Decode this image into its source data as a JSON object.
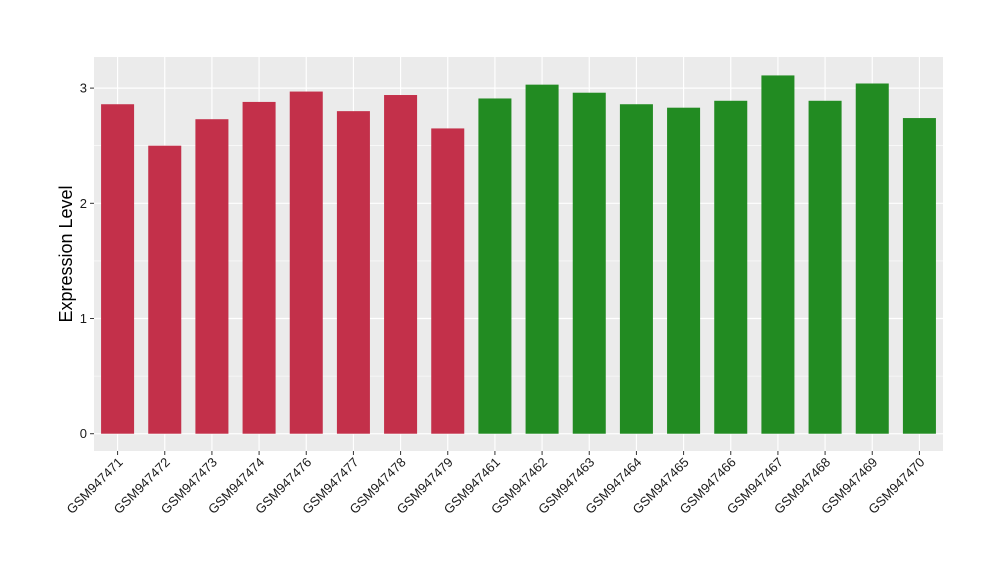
{
  "chart_data": {
    "type": "bar",
    "title": "",
    "xlabel": "",
    "ylabel": "Expression Level",
    "ylim": [
      -0.15,
      3.27
    ],
    "yticks": [
      0,
      1,
      2,
      3
    ],
    "grid": true,
    "legend": "none",
    "panel_color": "#ebebeb",
    "grid_color": "#ffffff",
    "categories": [
      "GSM947471",
      "GSM947472",
      "GSM947473",
      "GSM947474",
      "GSM947476",
      "GSM947477",
      "GSM947478",
      "GSM947479",
      "GSM947461",
      "GSM947462",
      "GSM947463",
      "GSM947464",
      "GSM947465",
      "GSM947466",
      "GSM947467",
      "GSM947468",
      "GSM947469",
      "GSM947470"
    ],
    "values": [
      2.86,
      2.5,
      2.73,
      2.88,
      2.97,
      2.8,
      2.94,
      2.65,
      2.91,
      3.03,
      2.96,
      2.86,
      2.83,
      2.89,
      3.11,
      2.89,
      3.04,
      2.74
    ],
    "colors": [
      "#c3304a",
      "#c3304a",
      "#c3304a",
      "#c3304a",
      "#c3304a",
      "#c3304a",
      "#c3304a",
      "#c3304a",
      "#228b22",
      "#228b22",
      "#228b22",
      "#228b22",
      "#228b22",
      "#228b22",
      "#228b22",
      "#228b22",
      "#228b22",
      "#228b22"
    ]
  }
}
